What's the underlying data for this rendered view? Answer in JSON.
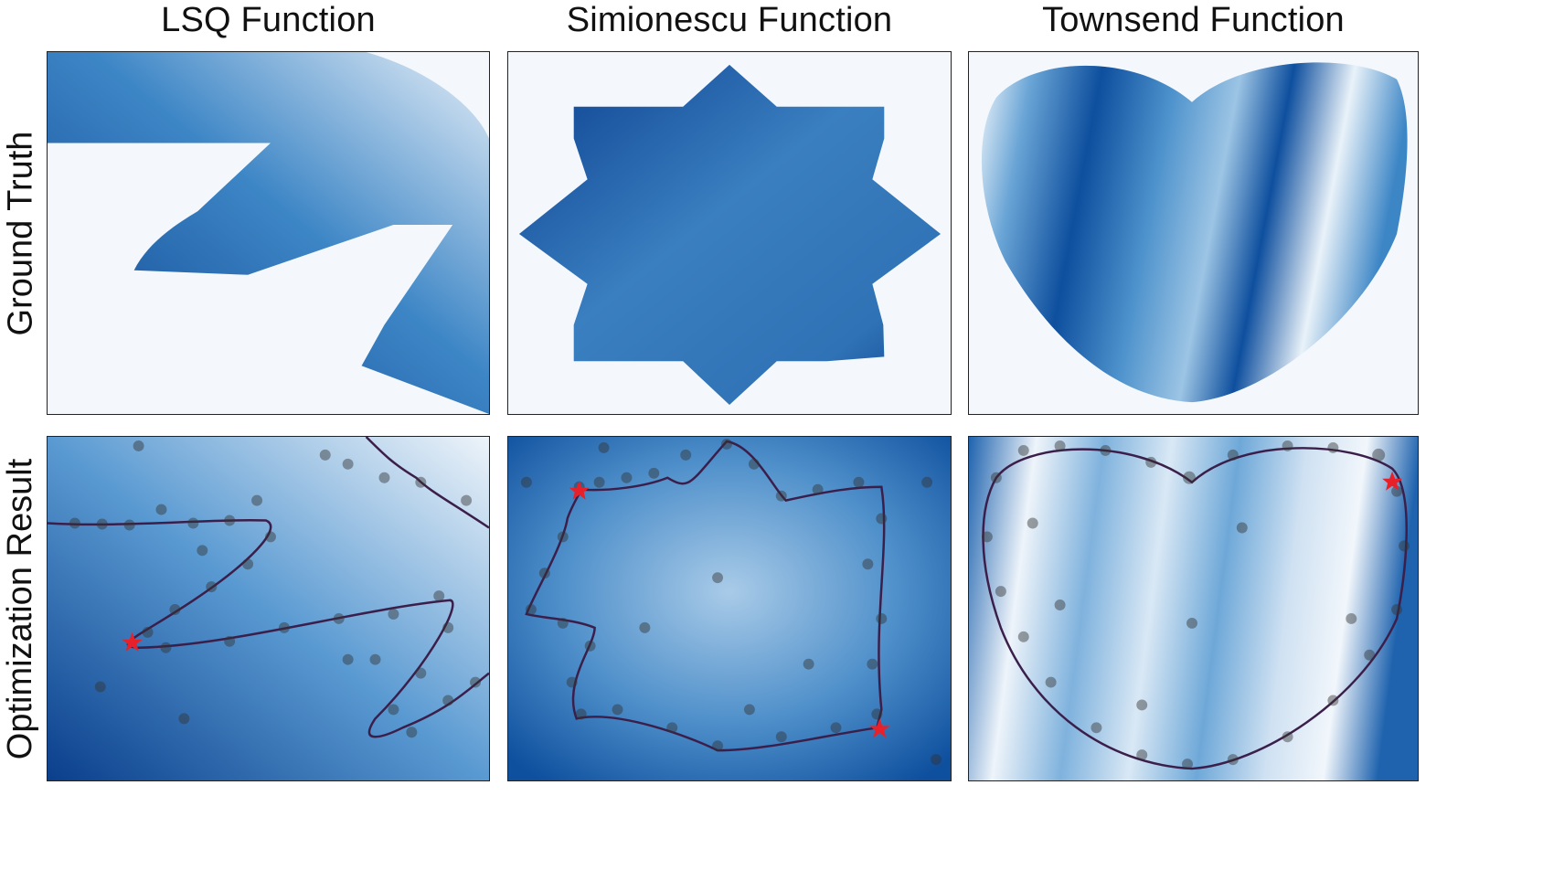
{
  "figure": {
    "columns": [
      {
        "title": "LSQ Function"
      },
      {
        "title": "Simionescu Function"
      },
      {
        "title": "Townsend Function"
      }
    ],
    "rows": [
      {
        "label": "Ground Truth"
      },
      {
        "label": "Optimization Result"
      }
    ]
  },
  "chart_data": [
    {
      "type": "heatmap",
      "title": "LSQ Function",
      "row": "Ground Truth",
      "colormap": "Blues",
      "markers": "red star = global optimum",
      "optima_count": 1
    },
    {
      "type": "heatmap",
      "title": "Simionescu Function",
      "row": "Ground Truth",
      "colormap": "Blues",
      "markers": "red star = global optimum",
      "optima_count": 2
    },
    {
      "type": "heatmap",
      "title": "Townsend Function",
      "row": "Ground Truth",
      "colormap": "Blues",
      "markers": "red star = global optimum",
      "optima_count": 1
    },
    {
      "type": "scatter",
      "title": "LSQ Function",
      "row": "Optimization Result",
      "colormap": "Blues",
      "overlay": "purple constraint boundary line, grey sample points",
      "optima_count": 1
    },
    {
      "type": "scatter",
      "title": "Simionescu Function",
      "row": "Optimization Result",
      "colormap": "Blues",
      "overlay": "purple constraint boundary line, grey sample points",
      "optima_count": 2
    },
    {
      "type": "scatter",
      "title": "Townsend Function",
      "row": "Optimization Result",
      "colormap": "Blues",
      "overlay": "purple constraint boundary line, grey sample points",
      "optima_count": 1
    }
  ],
  "colors": {
    "dark_blue": "#0b4a9a",
    "mid_blue": "#3b82c4",
    "light_blue": "#d6e6f4",
    "background": "#f4f8fc",
    "star": "#e8202a",
    "boundary": "#3b1f4a",
    "points": "#333333"
  }
}
